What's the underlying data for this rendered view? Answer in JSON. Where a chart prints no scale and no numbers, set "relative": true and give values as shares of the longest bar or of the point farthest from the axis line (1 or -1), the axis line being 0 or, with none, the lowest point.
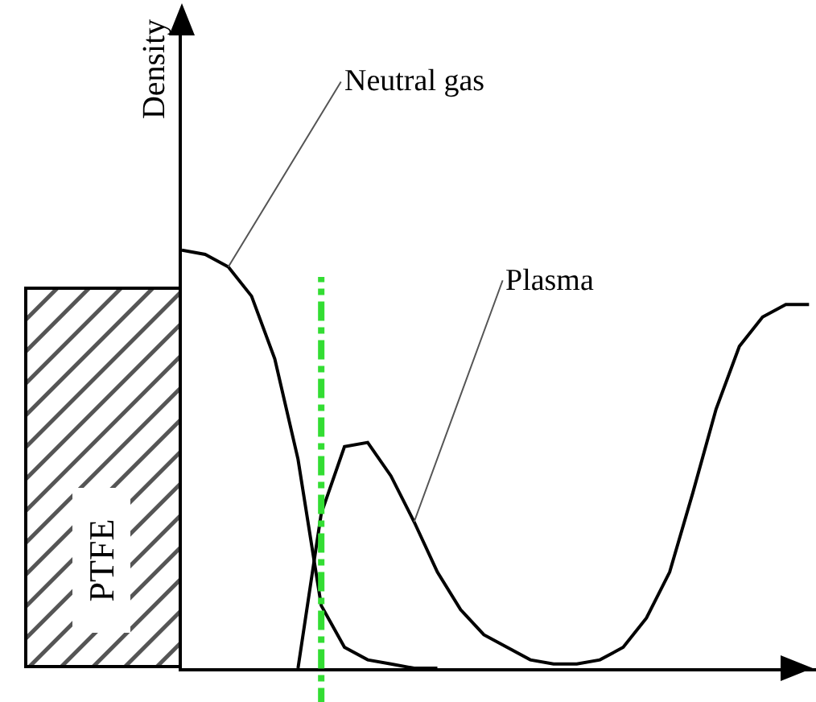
{
  "chart_data": {
    "type": "line",
    "relative": true,
    "ylabel": "Density",
    "categories": [
      null,
      null,
      null,
      null,
      null,
      null,
      null,
      null,
      null,
      null,
      null,
      null,
      null,
      null,
      null,
      null,
      null,
      null,
      null,
      null,
      null,
      null,
      null,
      null,
      null,
      null,
      null,
      null
    ],
    "series": [
      {
        "name": "Neutral gas",
        "color": "#000000",
        "values": [
          1.0,
          0.99,
          0.96,
          0.89,
          0.74,
          0.5,
          0.15,
          0.05,
          0.02,
          0.01,
          0,
          0,
          null,
          null,
          null,
          null,
          null,
          null,
          null,
          null,
          null,
          null,
          null,
          null,
          null,
          null,
          null,
          null
        ]
      },
      {
        "name": "Plasma",
        "color": "#000000",
        "values": [
          null,
          null,
          null,
          null,
          null,
          0,
          0.37,
          0.53,
          0.54,
          0.46,
          0.35,
          0.23,
          0.14,
          0.08,
          0.05,
          0.02,
          0.01,
          0.01,
          0.02,
          0.05,
          0.12,
          0.23,
          0.42,
          0.62,
          0.77,
          0.84,
          0.87,
          0.87
        ]
      }
    ],
    "annotations": [
      "PTFE"
    ],
    "legend": false,
    "marker": "none",
    "line_style": "solid"
  }
}
